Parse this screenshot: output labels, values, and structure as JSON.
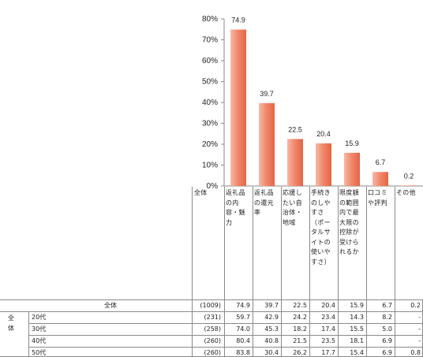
{
  "chart_data": {
    "type": "bar",
    "categories": [
      "返礼品の内容・魅力",
      "返礼品の還元率",
      "応援したい自治体・地域",
      "手続きのしやすさ（ポータルサイトの使いやすさ）",
      "限度額の範囲内で最大限の控除が受けられるか",
      "口コミや評判",
      "その他"
    ],
    "values": [
      74.9,
      39.7,
      22.5,
      20.4,
      15.9,
      6.7,
      0.2
    ],
    "y_ticks": [
      "0%",
      "10%",
      "20%",
      "30%",
      "40%",
      "50%",
      "60%",
      "70%",
      "80%"
    ],
    "ylim": [
      0,
      80
    ],
    "bar_color": "#f08a6e",
    "table": {
      "corner_label": "全体",
      "group_label": "全体",
      "rows": [
        {
          "label": "全体",
          "n": "(1009)",
          "values": [
            "74.9",
            "39.7",
            "22.5",
            "20.4",
            "15.9",
            "6.7",
            "0.2"
          ]
        },
        {
          "label": "20代",
          "n": "(231)",
          "values": [
            "59.7",
            "42.9",
            "24.2",
            "23.4",
            "14.3",
            "8.2",
            "-"
          ]
        },
        {
          "label": "30代",
          "n": "(258)",
          "values": [
            "74.0",
            "45.3",
            "18.2",
            "17.4",
            "15.5",
            "5.0",
            "-"
          ]
        },
        {
          "label": "40代",
          "n": "(260)",
          "values": [
            "80.4",
            "40.8",
            "21.5",
            "23.5",
            "18.1",
            "6.9",
            "-"
          ]
        },
        {
          "label": "50代",
          "n": "(260)",
          "values": [
            "83.8",
            "30.4",
            "26.2",
            "17.7",
            "15.4",
            "6.9",
            "0.8"
          ]
        }
      ]
    }
  }
}
